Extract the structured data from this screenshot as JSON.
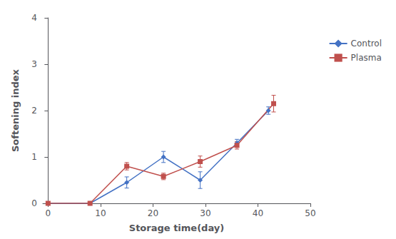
{
  "chart_data": {
    "type": "line",
    "xlabel": "Storage time(day)",
    "ylabel": "Softening index",
    "xlim": [
      -1,
      50
    ],
    "xticks": [
      0,
      10,
      20,
      30,
      40,
      50
    ],
    "ylim": [
      0,
      4
    ],
    "yticks": [
      0,
      1,
      2,
      3,
      4
    ],
    "grid": false,
    "legend": "right",
    "series": [
      {
        "name": "Control",
        "color": "#4472c4",
        "marker": "diamond",
        "x": [
          0,
          8,
          15,
          22,
          29,
          36,
          42
        ],
        "values": [
          0.0,
          0.0,
          0.45,
          1.0,
          0.5,
          1.3,
          2.0
        ],
        "errors": [
          0.0,
          0.02,
          0.12,
          0.12,
          0.18,
          0.08,
          0.08
        ]
      },
      {
        "name": "Plasma",
        "color": "#c0504d",
        "marker": "square",
        "x": [
          0,
          8,
          15,
          22,
          29,
          36,
          43
        ],
        "values": [
          0.0,
          0.0,
          0.8,
          0.58,
          0.9,
          1.25,
          2.15
        ],
        "errors": [
          0.0,
          0.02,
          0.08,
          0.07,
          0.12,
          0.08,
          0.18
        ]
      }
    ]
  }
}
